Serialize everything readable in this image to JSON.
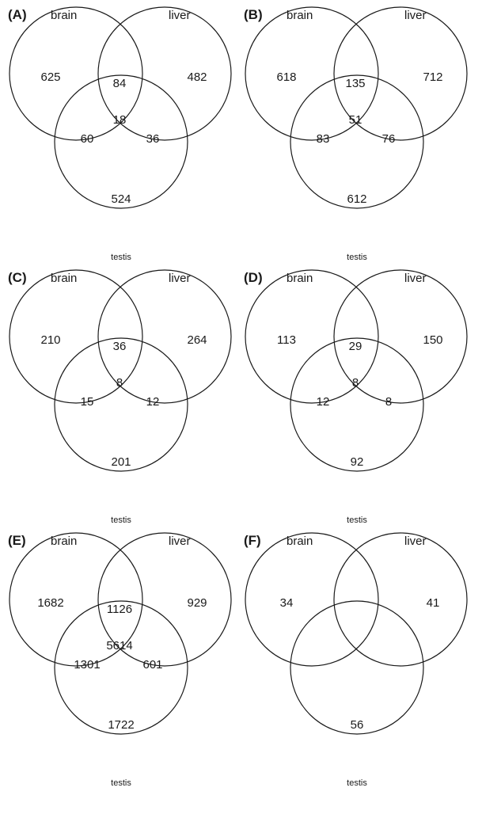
{
  "sets": {
    "a": "brain",
    "b": "liver",
    "c": "testis"
  },
  "panels": [
    {
      "label": "(A)",
      "regions": {
        "a": "625",
        "ab": "84",
        "b": "482",
        "abc": "18",
        "ac": "60",
        "bc": "36",
        "c": "524"
      }
    },
    {
      "label": "(B)",
      "regions": {
        "a": "618",
        "ab": "135",
        "b": "712",
        "abc": "51",
        "ac": "83",
        "bc": "76",
        "c": "612"
      }
    },
    {
      "label": "(C)",
      "regions": {
        "a": "210",
        "ab": "36",
        "b": "264",
        "abc": "8",
        "ac": "15",
        "bc": "12",
        "c": "201"
      }
    },
    {
      "label": "(D)",
      "regions": {
        "a": "113",
        "ab": "29",
        "b": "150",
        "abc": "8",
        "ac": "12",
        "bc": "8",
        "c": "92"
      }
    },
    {
      "label": "(E)",
      "regions": {
        "a": "1682",
        "ab": "1126",
        "b": "929",
        "abc": "5614",
        "ac": "1301",
        "bc": "601",
        "c": "1722"
      }
    },
    {
      "label": "(F)",
      "regions": {
        "a": "34",
        "ab": "",
        "b": "41",
        "abc": "",
        "ac": "",
        "bc": "",
        "c": "56"
      }
    }
  ]
}
